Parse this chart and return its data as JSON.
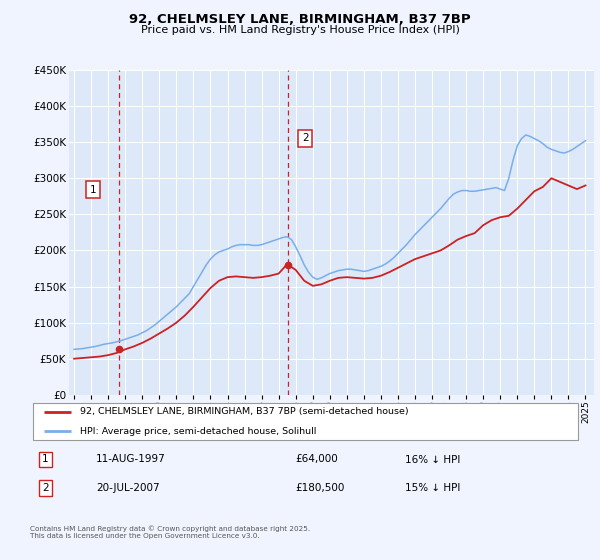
{
  "title": "92, CHELMSLEY LANE, BIRMINGHAM, B37 7BP",
  "subtitle": "Price paid vs. HM Land Registry's House Price Index (HPI)",
  "background_color": "#f0f4ff",
  "plot_bg_color": "#dde8f8",
  "grid_color": "#ffffff",
  "hpi_color": "#7aaee8",
  "price_color": "#cc2222",
  "vline_color": "#cc2222",
  "ylim": [
    0,
    450000
  ],
  "yticks": [
    0,
    50000,
    100000,
    150000,
    200000,
    250000,
    300000,
    350000,
    400000,
    450000
  ],
  "sale1_year": 1997.62,
  "sale1_price": 64000,
  "sale2_year": 2007.55,
  "sale2_price": 180500,
  "legend_label_price": "92, CHELMSLEY LANE, BIRMINGHAM, B37 7BP (semi-detached house)",
  "legend_label_hpi": "HPI: Average price, semi-detached house, Solihull",
  "annotation1_date": "11-AUG-1997",
  "annotation1_price": "£64,000",
  "annotation1_hpi": "16% ↓ HPI",
  "annotation2_date": "20-JUL-2007",
  "annotation2_price": "£180,500",
  "annotation2_hpi": "15% ↓ HPI",
  "footer": "Contains HM Land Registry data © Crown copyright and database right 2025.\nThis data is licensed under the Open Government Licence v3.0.",
  "hpi_years": [
    1995.0,
    1995.25,
    1995.5,
    1995.75,
    1996.0,
    1996.25,
    1996.5,
    1996.75,
    1997.0,
    1997.25,
    1997.5,
    1997.75,
    1998.0,
    1998.25,
    1998.5,
    1998.75,
    1999.0,
    1999.25,
    1999.5,
    1999.75,
    2000.0,
    2000.25,
    2000.5,
    2000.75,
    2001.0,
    2001.25,
    2001.5,
    2001.75,
    2002.0,
    2002.25,
    2002.5,
    2002.75,
    2003.0,
    2003.25,
    2003.5,
    2003.75,
    2004.0,
    2004.25,
    2004.5,
    2004.75,
    2005.0,
    2005.25,
    2005.5,
    2005.75,
    2006.0,
    2006.25,
    2006.5,
    2006.75,
    2007.0,
    2007.25,
    2007.5,
    2007.75,
    2008.0,
    2008.25,
    2008.5,
    2008.75,
    2009.0,
    2009.25,
    2009.5,
    2009.75,
    2010.0,
    2010.25,
    2010.5,
    2010.75,
    2011.0,
    2011.25,
    2011.5,
    2011.75,
    2012.0,
    2012.25,
    2012.5,
    2012.75,
    2013.0,
    2013.25,
    2013.5,
    2013.75,
    2014.0,
    2014.25,
    2014.5,
    2014.75,
    2015.0,
    2015.25,
    2015.5,
    2015.75,
    2016.0,
    2016.25,
    2016.5,
    2016.75,
    2017.0,
    2017.25,
    2017.5,
    2017.75,
    2018.0,
    2018.25,
    2018.5,
    2018.75,
    2019.0,
    2019.25,
    2019.5,
    2019.75,
    2020.0,
    2020.25,
    2020.5,
    2020.75,
    2021.0,
    2021.25,
    2021.5,
    2021.75,
    2022.0,
    2022.25,
    2022.5,
    2022.75,
    2023.0,
    2023.25,
    2023.5,
    2023.75,
    2024.0,
    2024.25,
    2024.5,
    2024.75,
    2025.0
  ],
  "hpi_values": [
    63000,
    63500,
    64000,
    65000,
    66000,
    67000,
    68500,
    70000,
    71000,
    72000,
    73500,
    75000,
    77000,
    79000,
    81000,
    83000,
    86000,
    89000,
    93000,
    97000,
    102000,
    107000,
    112000,
    117000,
    122000,
    128000,
    134000,
    140000,
    150000,
    160000,
    170000,
    180000,
    188000,
    194000,
    198000,
    200000,
    202000,
    205000,
    207000,
    208000,
    208000,
    208000,
    207000,
    207000,
    208000,
    210000,
    212000,
    214000,
    216000,
    218000,
    219000,
    215000,
    205000,
    193000,
    180000,
    170000,
    163000,
    160000,
    162000,
    165000,
    168000,
    170000,
    172000,
    173000,
    174000,
    174000,
    173000,
    172000,
    171000,
    172000,
    174000,
    176000,
    178000,
    181000,
    185000,
    190000,
    196000,
    202000,
    208000,
    215000,
    222000,
    228000,
    234000,
    240000,
    246000,
    252000,
    258000,
    265000,
    272000,
    278000,
    281000,
    283000,
    283000,
    282000,
    282000,
    283000,
    284000,
    285000,
    286000,
    287000,
    285000,
    283000,
    300000,
    325000,
    345000,
    355000,
    360000,
    358000,
    355000,
    352000,
    348000,
    343000,
    340000,
    338000,
    336000,
    335000,
    337000,
    340000,
    344000,
    348000,
    352000
  ],
  "price_years": [
    1995.0,
    1995.5,
    1996.0,
    1996.5,
    1997.0,
    1997.5,
    1998.0,
    1998.5,
    1999.0,
    1999.5,
    2000.0,
    2000.5,
    2001.0,
    2001.5,
    2002.0,
    2002.5,
    2003.0,
    2003.5,
    2004.0,
    2004.5,
    2005.0,
    2005.5,
    2006.0,
    2006.5,
    2007.0,
    2007.5,
    2008.0,
    2008.5,
    2009.0,
    2009.5,
    2010.0,
    2010.5,
    2011.0,
    2011.5,
    2012.0,
    2012.5,
    2013.0,
    2013.5,
    2014.0,
    2014.5,
    2015.0,
    2015.5,
    2016.0,
    2016.5,
    2017.0,
    2017.5,
    2018.0,
    2018.5,
    2019.0,
    2019.5,
    2020.0,
    2020.5,
    2021.0,
    2021.5,
    2022.0,
    2022.5,
    2023.0,
    2023.5,
    2024.0,
    2024.5,
    2025.0
  ],
  "price_values": [
    50000,
    51000,
    52000,
    53000,
    55000,
    58000,
    63000,
    67000,
    72000,
    78000,
    85000,
    92000,
    100000,
    110000,
    122000,
    135000,
    148000,
    158000,
    163000,
    164000,
    163000,
    162000,
    163000,
    165000,
    168000,
    181000,
    173000,
    158000,
    151000,
    153000,
    158000,
    162000,
    163000,
    162000,
    161000,
    162000,
    165000,
    170000,
    176000,
    182000,
    188000,
    192000,
    196000,
    200000,
    207000,
    215000,
    220000,
    224000,
    235000,
    242000,
    246000,
    248000,
    258000,
    270000,
    282000,
    288000,
    300000,
    295000,
    290000,
    285000,
    290000
  ]
}
